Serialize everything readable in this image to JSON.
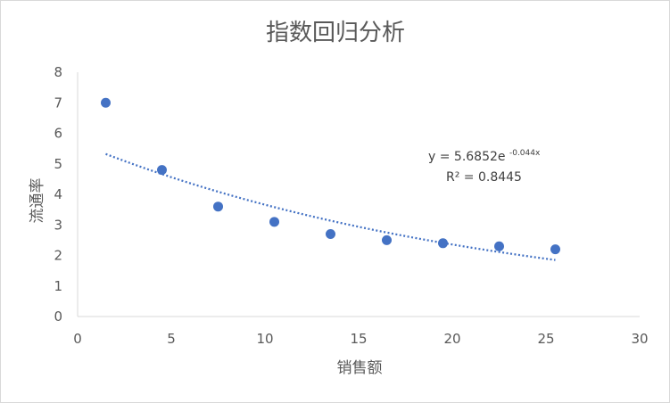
{
  "chart_data": {
    "type": "scatter",
    "title": "指数回归分析",
    "xlabel": "销售额",
    "ylabel": "流通率",
    "xlim": [
      0,
      30
    ],
    "ylim": [
      0,
      8
    ],
    "x_ticks": [
      "0",
      "5",
      "10",
      "15",
      "20",
      "25",
      "30"
    ],
    "y_ticks": [
      "0",
      "1",
      "2",
      "3",
      "4",
      "5",
      "6",
      "7",
      "8"
    ],
    "grid": false,
    "legend": "none",
    "points": {
      "x": [
        1.5,
        4.5,
        7.5,
        10.5,
        13.5,
        16.5,
        19.5,
        22.5,
        25.5
      ],
      "y": [
        7.0,
        4.8,
        3.6,
        3.1,
        2.7,
        2.5,
        2.4,
        2.3,
        2.2
      ]
    },
    "trendline": {
      "type": "exponential",
      "a": 5.6852,
      "b": -0.044,
      "x_range": [
        1.5,
        25.5
      ],
      "equation_base": "y = 5.6852e",
      "equation_exponent": "-0.044x",
      "r_squared_text": "R² = 0.8445"
    },
    "colors": {
      "points": "#4472c4",
      "trendline": "#4472c4",
      "axis": "#d9d9d9",
      "text": "#595959"
    }
  }
}
